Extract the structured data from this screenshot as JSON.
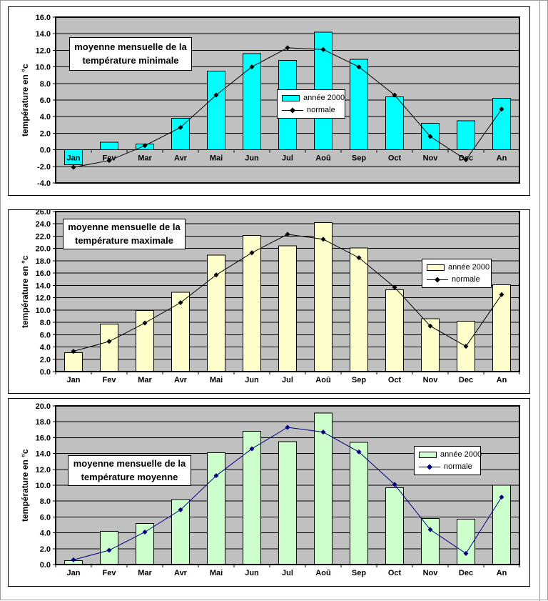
{
  "page": {
    "background": "#FFFFFF",
    "chart_frame_color": "#000000"
  },
  "chart_data": [
    {
      "type": "bar",
      "title": "moyenne mensuelle de la température minimale",
      "title_line1": "moyenne mensuelle de la",
      "title_line2": "température minimale",
      "ylabel": "température en °c",
      "ylim": [
        -4.0,
        16.0
      ],
      "ytick_step": 2.0,
      "grid": true,
      "plot_bg": "#C0C0C0",
      "legend_position": "middle-right",
      "categories": [
        "Jan",
        "Fev",
        "Mar",
        "Avr",
        "Mai",
        "Jun",
        "Jul",
        "Aoû",
        "Sep",
        "Oct",
        "Nov",
        "Dec",
        "An"
      ],
      "series": [
        {
          "name": "année 2000",
          "type": "bar",
          "color": "#00FFFF",
          "values": [
            -1.8,
            0.9,
            0.7,
            3.8,
            9.5,
            11.6,
            10.8,
            14.2,
            10.9,
            6.4,
            3.2,
            3.5,
            6.2
          ]
        },
        {
          "name": "normale",
          "type": "line",
          "marker": "diamond",
          "color": "#000000",
          "values": [
            -2.1,
            -1.3,
            0.5,
            2.7,
            6.6,
            10.0,
            12.3,
            12.1,
            10.0,
            6.6,
            1.6,
            -1.2,
            4.9
          ]
        }
      ]
    },
    {
      "type": "bar",
      "title": "moyenne mensuelle de la température maximale",
      "title_line1": "moyenne mensuelle de la",
      "title_line2": "température maximale",
      "ylabel": "température en °c",
      "ylim": [
        0.0,
        26.0
      ],
      "ytick_step": 2.0,
      "grid": true,
      "plot_bg": "#C0C0C0",
      "legend_position": "middle-right",
      "categories": [
        "Jan",
        "Fev",
        "Mar",
        "Avr",
        "Mai",
        "Jun",
        "Jul",
        "Aoû",
        "Sep",
        "Oct",
        "Nov",
        "Dec",
        "An"
      ],
      "series": [
        {
          "name": "année 2000",
          "type": "bar",
          "color": "#FFFFCC",
          "values": [
            3.1,
            7.7,
            9.9,
            12.9,
            18.9,
            22.1,
            20.4,
            24.2,
            20.1,
            13.3,
            8.6,
            8.2,
            14.1
          ]
        },
        {
          "name": "normale",
          "type": "line",
          "marker": "diamond",
          "color": "#000000",
          "values": [
            3.3,
            4.9,
            7.9,
            11.2,
            15.7,
            19.3,
            22.3,
            21.5,
            18.5,
            13.7,
            7.4,
            4.1,
            12.5
          ]
        }
      ]
    },
    {
      "type": "bar",
      "title": "moyenne mensuelle de la température moyenne",
      "title_line1": "moyenne mensuelle de la",
      "title_line2": "température moyenne",
      "ylabel": "température en °c",
      "ylim": [
        0.0,
        20.0
      ],
      "ytick_step": 2.0,
      "grid": true,
      "plot_bg": "#C0C0C0",
      "legend_position": "middle-right",
      "categories": [
        "Jan",
        "Fev",
        "Mar",
        "Avr",
        "Mai",
        "Jun",
        "Jul",
        "Aoû",
        "Sep",
        "Oct",
        "Nov",
        "Dec",
        "An"
      ],
      "series": [
        {
          "name": "année 2000",
          "type": "bar",
          "color": "#CCFFCC",
          "values": [
            0.5,
            4.2,
            5.2,
            8.2,
            14.1,
            16.8,
            15.5,
            19.1,
            15.4,
            9.7,
            5.8,
            5.7,
            10.0
          ]
        },
        {
          "name": "normale",
          "type": "line",
          "marker": "diamond",
          "color": "#000080",
          "values": [
            0.6,
            1.8,
            4.1,
            6.9,
            11.2,
            14.6,
            17.3,
            16.7,
            14.2,
            10.1,
            4.4,
            1.4,
            8.5
          ]
        }
      ]
    }
  ]
}
